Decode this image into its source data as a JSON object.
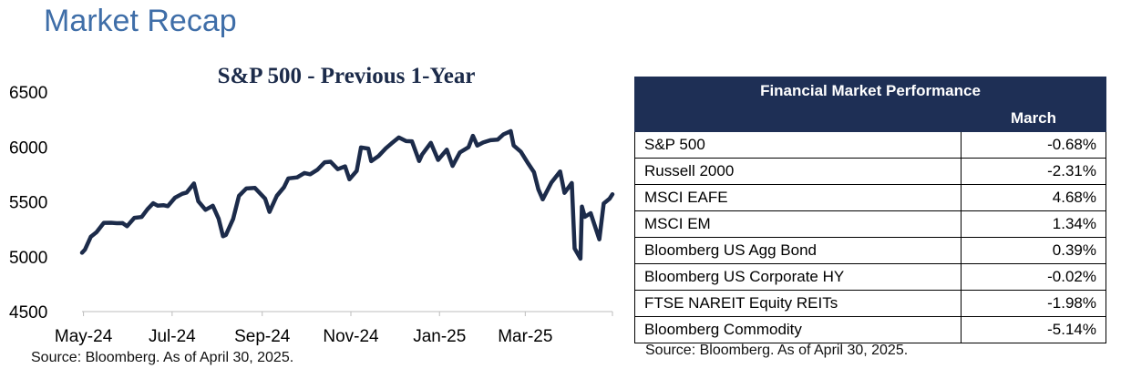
{
  "page_title": "Market Recap",
  "chart_data": {
    "type": "line",
    "title": "S&P 500 - Previous 1-Year",
    "xlabel": "",
    "ylabel": "",
    "ylim": [
      4500,
      6500
    ],
    "y_ticks": [
      "6500",
      "6000",
      "5500",
      "5000",
      "4500"
    ],
    "x_ticks": [
      "May-24",
      "Jul-24",
      "Sep-24",
      "Nov-24",
      "Jan-25",
      "Mar-25"
    ],
    "x_tick_dates": [
      "2024-05-01",
      "2024-07-01",
      "2024-09-01",
      "2024-11-01",
      "2025-01-01",
      "2025-03-01"
    ],
    "xlim": [
      "2024-04-30",
      "2025-04-30"
    ],
    "series": [
      {
        "color": "#1c2b4a",
        "x": [
          "2024-04-30",
          "2024-05-02",
          "2024-05-06",
          "2024-05-10",
          "2024-05-15",
          "2024-05-20",
          "2024-05-24",
          "2024-05-28",
          "2024-05-31",
          "2024-06-05",
          "2024-06-10",
          "2024-06-14",
          "2024-06-18",
          "2024-06-21",
          "2024-06-25",
          "2024-06-28",
          "2024-07-03",
          "2024-07-08",
          "2024-07-11",
          "2024-07-16",
          "2024-07-19",
          "2024-07-24",
          "2024-07-29",
          "2024-08-02",
          "2024-08-05",
          "2024-08-07",
          "2024-08-12",
          "2024-08-16",
          "2024-08-21",
          "2024-08-27",
          "2024-09-03",
          "2024-09-06",
          "2024-09-11",
          "2024-09-16",
          "2024-09-19",
          "2024-09-25",
          "2024-09-30",
          "2024-10-04",
          "2024-10-09",
          "2024-10-14",
          "2024-10-18",
          "2024-10-23",
          "2024-10-28",
          "2024-10-31",
          "2024-11-05",
          "2024-11-08",
          "2024-11-13",
          "2024-11-15",
          "2024-11-20",
          "2024-11-25",
          "2024-11-29",
          "2024-12-04",
          "2024-12-09",
          "2024-12-13",
          "2024-12-18",
          "2024-12-20",
          "2024-12-26",
          "2024-12-31",
          "2025-01-06",
          "2025-01-10",
          "2025-01-15",
          "2025-01-21",
          "2025-01-24",
          "2025-01-27",
          "2025-01-31",
          "2025-02-05",
          "2025-02-10",
          "2025-02-14",
          "2025-02-19",
          "2025-02-21",
          "2025-02-26",
          "2025-03-03",
          "2025-03-07",
          "2025-03-10",
          "2025-03-13",
          "2025-03-19",
          "2025-03-25",
          "2025-03-28",
          "2025-04-02",
          "2025-04-04",
          "2025-04-08",
          "2025-04-09",
          "2025-04-11",
          "2025-04-15",
          "2025-04-21",
          "2025-04-24",
          "2025-04-28",
          "2025-04-30"
        ],
        "values": [
          5036,
          5064,
          5181,
          5223,
          5308,
          5309,
          5305,
          5306,
          5278,
          5354,
          5361,
          5432,
          5487,
          5465,
          5469,
          5460,
          5537,
          5573,
          5585,
          5667,
          5505,
          5427,
          5464,
          5346,
          5186,
          5199,
          5344,
          5554,
          5621,
          5626,
          5528,
          5408,
          5554,
          5633,
          5713,
          5722,
          5762,
          5751,
          5792,
          5860,
          5865,
          5797,
          5823,
          5705,
          5782,
          5995,
          5985,
          5870,
          5917,
          5987,
          6032,
          6086,
          6053,
          6051,
          5872,
          5930,
          6037,
          5882,
          5975,
          5827,
          5950,
          5997,
          6101,
          6012,
          6040,
          6061,
          6066,
          6114,
          6144,
          6013,
          5956,
          5849,
          5770,
          5614,
          5522,
          5675,
          5776,
          5581,
          5671,
          5074,
          4982,
          5457,
          5363,
          5396,
          5158,
          5484,
          5528,
          5569
        ]
      }
    ]
  },
  "chart_source": "Source: Bloomberg. As of April 30, 2025.",
  "table": {
    "title": "Financial Market Performance",
    "column_header": "March",
    "rows": [
      {
        "label": "S&P 500",
        "value": "-0.68%"
      },
      {
        "label": "Russell 2000",
        "value": "-2.31%"
      },
      {
        "label": "MSCI EAFE",
        "value": "4.68%"
      },
      {
        "label": "MSCI EM",
        "value": "1.34%"
      },
      {
        "label": "Bloomberg US Agg Bond",
        "value": "0.39%"
      },
      {
        "label": "Bloomberg US Corporate HY",
        "value": "-0.02%"
      },
      {
        "label": "FTSE NAREIT Equity REITs",
        "value": "-1.98%"
      },
      {
        "label": "Bloomberg Commodity",
        "value": "-5.14%"
      }
    ],
    "source": "Source: Bloomberg. As of April 30, 2025."
  }
}
